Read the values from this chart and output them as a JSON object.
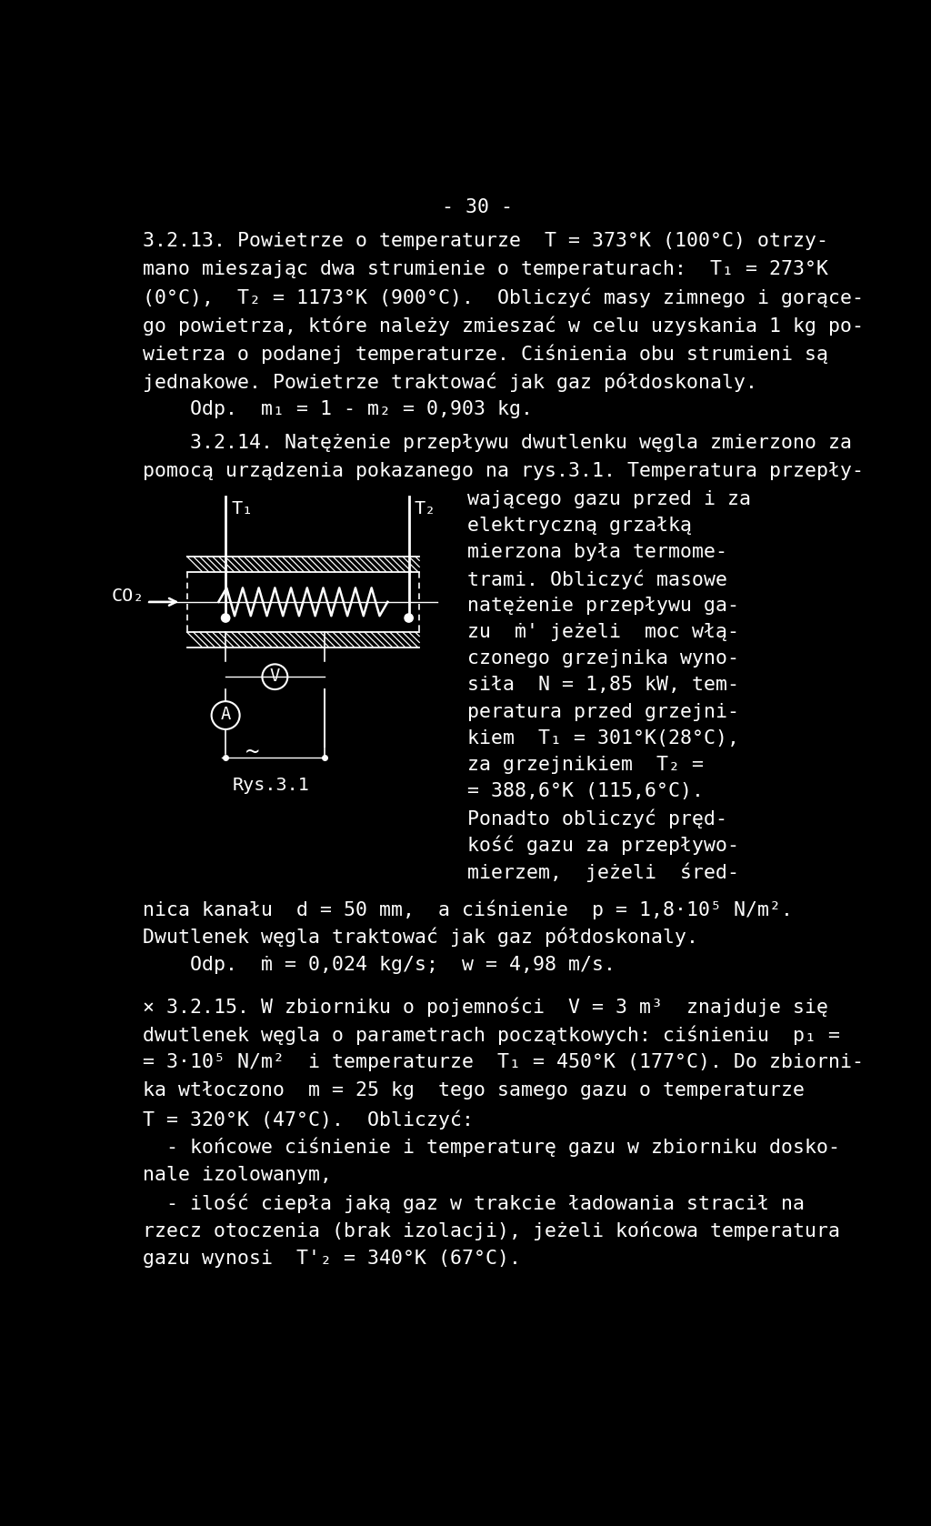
{
  "background_color": "#000000",
  "text_color": "#ffffff",
  "page_number": "- 30 -",
  "para1_lines": [
    "3.2.13. Powietrze o temperaturze  T = 373°K (100°C) otrzy-",
    "mano mieszając dwa strumienie o temperaturach:  T₁ = 273°K",
    "(0°C),  T₂ = 1173°K (900°C).  Obliczyć masy zimnego i gorące-",
    "go powietrza, które należy zmieszać w celu uzyskania 1 kg po-",
    "wietrza o podanej temperaturze. Ciśnienia obu strumieni są",
    "jednakowe. Powietrze traktować jak gaz półdoskonaly."
  ],
  "odp1": "    Odp.  m₁ = 1 - m₂ = 0,903 kg.",
  "para2_line1": "    3.2.14. Natężenie przepływu dwutlenku węgla zmierzono za",
  "para2_line2": "pomocą urządzenia pokazanego na rys.3.1. Temperatura przepły-",
  "para2_right_lines": [
    "wającego gazu przed i za",
    "elektryczną grzałką",
    "mierzona była termome-",
    "trami. Obliczyć masowe",
    "natężenie przepływu ga-",
    "zu  ṁ' jeżeli  moc włą-",
    "czonego grzejnika wyno-",
    "siła  N = 1,85 kW, tem-",
    "peratura przed grzejni-",
    "kiem  T₁ = 301°K(28°C),",
    "za grzejnikiem  T₂ =",
    "= 388,6°K (115,6°C).",
    "Ponadto obliczyć pręd-",
    "kość gazu za przepływo-",
    "mierzem,  jeżeli  śred-"
  ],
  "fig_label": "Rys.3.1",
  "co2_label": "CO₂",
  "t1_label": "T₁",
  "t2_label": "T₂",
  "v_label": "V",
  "a_label": "A",
  "para3_lines": [
    "nica kanału  d = 50 mm,  a ciśnienie  p = 1,8·10⁵ N/m².",
    "Dwutlenek węgla traktować jak gaz półdoskonaly.",
    "    Odp.  ṁ = 0,024 kg/s;  w = 4,98 m/s."
  ],
  "para4_start": "× 3.2.15. W zbiorniku o pojemności  V = 3 m³  znajduje się",
  "para4_lines": [
    "dwutlenek węgla o parametrach początkowych: ciśnieniu  p₁ =",
    "= 3·10⁵ N/m²  i temperaturze  T₁ = 450°K (177°C). Do zbiorni-",
    "ka wtłoczono  m = 25 kg  tego samego gazu o temperaturze",
    "T = 320°K (47°C).  Obliczyć:",
    "  - końcowe ciśnienie i temperaturę gazu w zbiorniku dosko-",
    "nale izolowanym,",
    "  - ilość ciepła jaką gaz w trakcie ładowania stracił na",
    "rzecz otoczenia (brak izolacji), jeżeli końcowa temperatura",
    "gazu wynosi  T'₂ = 340°K (67°C)."
  ],
  "font_size_body": 15.5,
  "font_family": "DejaVu Sans Mono"
}
